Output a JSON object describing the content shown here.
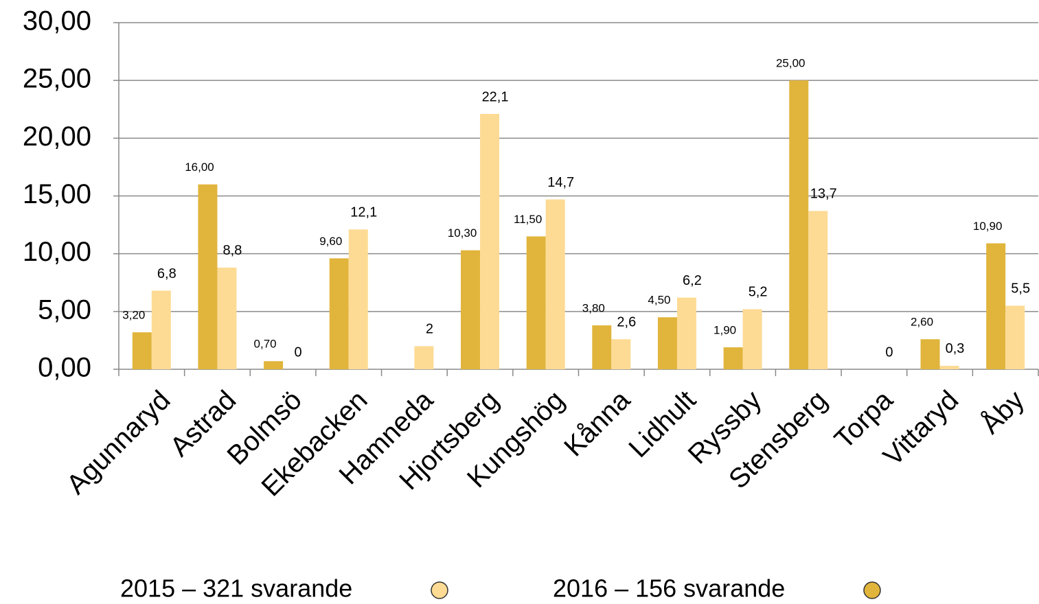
{
  "chart_data": {
    "type": "bar",
    "categories": [
      "Agunnaryd",
      "Astrad",
      "Bolmsö",
      "Ekebacken",
      "Hamneda",
      "Hjortsberg",
      "Kungshög",
      "Kånna",
      "Lidhult",
      "Ryssby",
      "Stensberg",
      "Torpa",
      "Vittaryd",
      "Åby"
    ],
    "series": [
      {
        "name": "2016 – 156 svarande",
        "color": "#e1b53c",
        "values": [
          3.2,
          16,
          0.7,
          9.6,
          null,
          10.3,
          11.5,
          3.8,
          4.5,
          1.9,
          25,
          null,
          2.6,
          10.9
        ],
        "value_labels": [
          "3,20",
          "16,00",
          "0,70",
          "9,60",
          null,
          "10,30",
          "11,50",
          "3,80",
          "4,50",
          "1,90",
          "25,00",
          null,
          "2,60",
          "10,90"
        ]
      },
      {
        "name": "2015 – 321 svarande",
        "color": "#fddb94",
        "values": [
          6.8,
          8.8,
          0,
          12.1,
          2,
          22.1,
          14.7,
          2.6,
          6.2,
          5.2,
          13.7,
          0,
          0.3,
          5.5
        ],
        "value_labels": [
          "6,8",
          "8,8",
          "0",
          "12,1",
          "2",
          "22,1",
          "14,7",
          "2,6",
          "6,2",
          "5,2",
          "13,7",
          "0",
          "0,3",
          "5,5"
        ]
      }
    ],
    "ylim": [
      0,
      30
    ],
    "yticks": [
      {
        "value": 0,
        "label": "0,00"
      },
      {
        "value": 5,
        "label": "5,00"
      },
      {
        "value": 10,
        "label": "10,00"
      },
      {
        "value": 15,
        "label": "15,00"
      },
      {
        "value": 20,
        "label": "20,00"
      },
      {
        "value": 25,
        "label": "25,00"
      },
      {
        "value": 30,
        "label": "30,00"
      }
    ],
    "grid": true
  }
}
